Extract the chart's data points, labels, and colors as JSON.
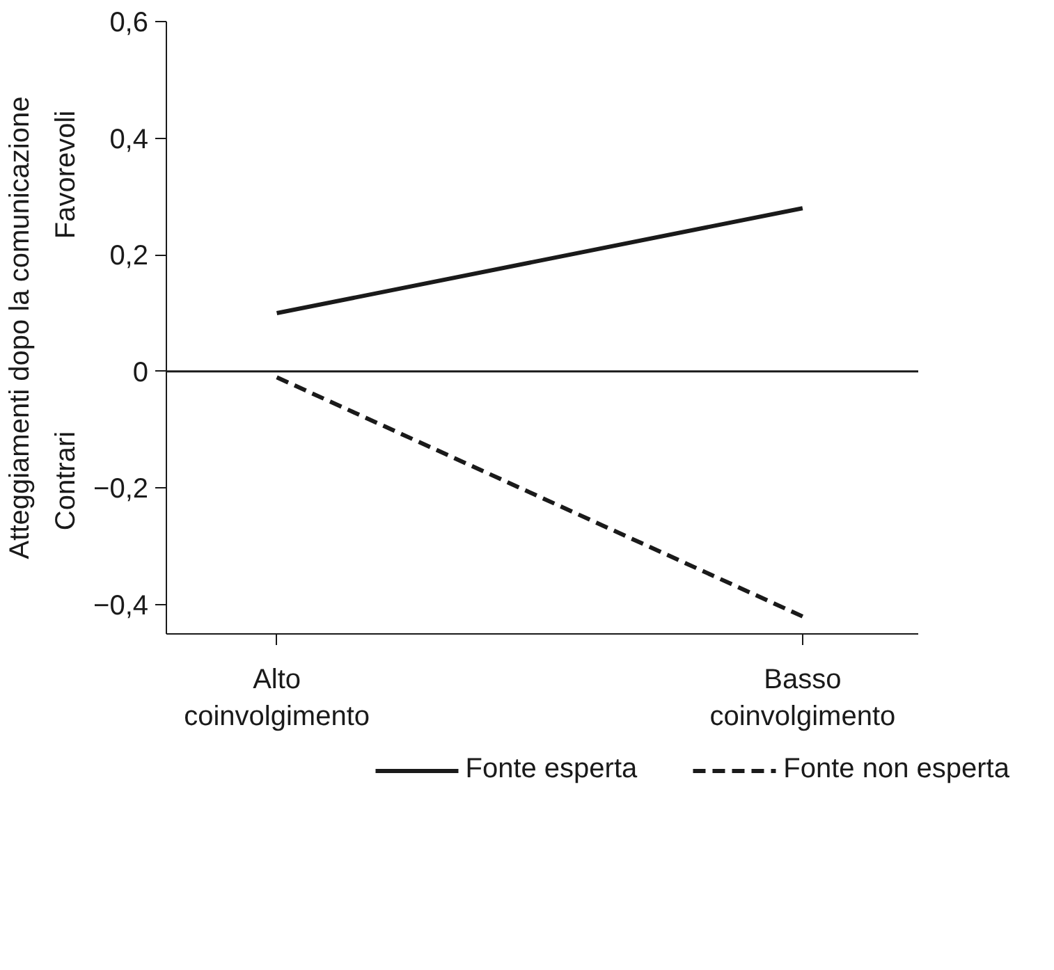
{
  "chart_data": {
    "type": "line",
    "ylabel": "Atteggiamenti dopo la comunicazione",
    "categories": [
      "Alto\ncoinvolgimento",
      "Basso\ncoinvolgimento"
    ],
    "series": [
      {
        "name": "Fonte esperta",
        "color": "#1a1a1a",
        "line_style": "solid",
        "values": [
          0.1,
          0.28
        ]
      },
      {
        "name": "Fonte non esperta",
        "color": "#1a1a1a",
        "line_style": "dashed",
        "values": [
          -0.01,
          -0.42
        ]
      }
    ],
    "ylim": [
      -0.45,
      0.6
    ],
    "yticks": [
      {
        "value": -0.4,
        "label": "−0,4"
      },
      {
        "value": -0.2,
        "label": "−0,2"
      },
      0,
      {
        "value": 0.2,
        "label": "0,2"
      },
      {
        "value": 0.4,
        "label": "0,4"
      },
      {
        "value": 0.6,
        "label": "0,6"
      }
    ],
    "ref_lines": [
      {
        "axis": "y",
        "value": 0,
        "label": null,
        "color": "#1a1a1a"
      }
    ],
    "annotations": [
      "Favorevoli",
      "Contrari"
    ],
    "grid": false,
    "legend": "bottom",
    "marker": "none"
  }
}
